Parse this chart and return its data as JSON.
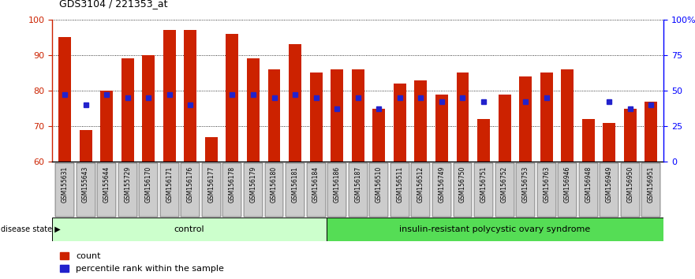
{
  "title": "GDS3104 / 221353_at",
  "samples": [
    "GSM155631",
    "GSM155643",
    "GSM155644",
    "GSM155729",
    "GSM156170",
    "GSM156171",
    "GSM156176",
    "GSM156177",
    "GSM156178",
    "GSM156179",
    "GSM156180",
    "GSM156181",
    "GSM156184",
    "GSM156186",
    "GSM156187",
    "GSM156510",
    "GSM156511",
    "GSM156512",
    "GSM156749",
    "GSM156750",
    "GSM156751",
    "GSM156752",
    "GSM156753",
    "GSM156763",
    "GSM156946",
    "GSM156948",
    "GSM156949",
    "GSM156950",
    "GSM156951"
  ],
  "red_values": [
    95,
    69,
    80,
    89,
    90,
    97,
    97,
    67,
    96,
    89,
    86,
    93,
    85,
    86,
    86,
    75,
    82,
    83,
    79,
    85,
    72,
    79,
    84,
    85,
    86,
    72,
    71,
    75,
    77
  ],
  "blue_values": [
    79,
    76,
    79,
    78,
    78,
    79,
    76,
    null,
    79,
    79,
    78,
    79,
    78,
    75,
    78,
    75,
    78,
    78,
    77,
    78,
    77,
    null,
    77,
    78,
    null,
    null,
    77,
    75,
    76
  ],
  "control_count": 13,
  "disease_count": 16,
  "group1_label": "control",
  "group2_label": "insulin-resistant polycystic ovary syndrome",
  "disease_state_label": "disease state",
  "ymin": 60,
  "ymax": 100,
  "bar_color": "#CC2200",
  "blue_color": "#2222CC",
  "control_bg": "#CCFFCC",
  "disease_bg": "#55DD55",
  "gray_bg": "#CCCCCC",
  "legend_red_label": "count",
  "legend_blue_label": "percentile rank within the sample"
}
